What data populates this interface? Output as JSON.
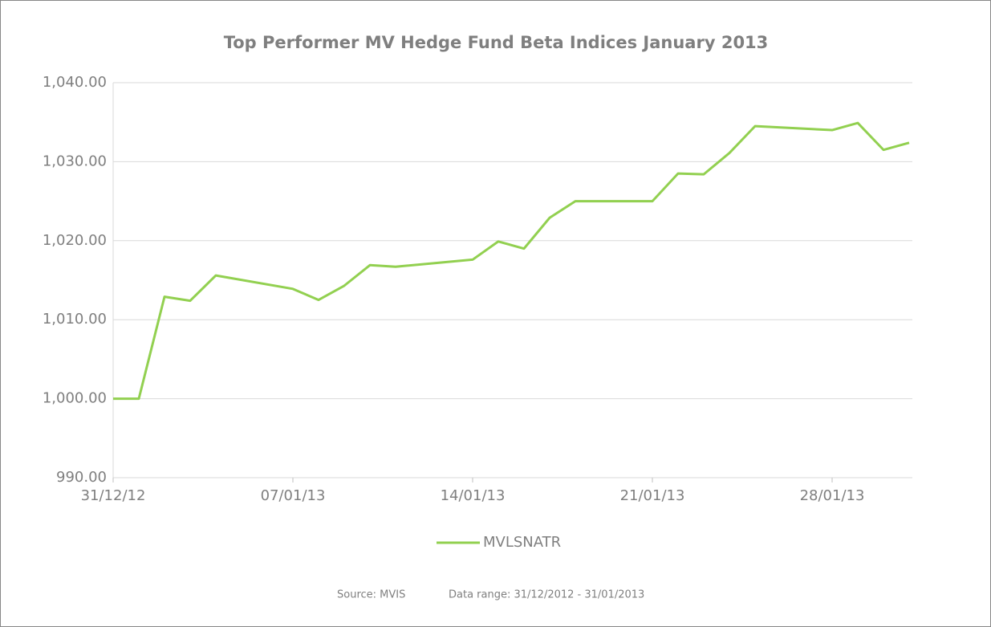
{
  "chart_data": {
    "type": "line",
    "title": "Top Performer MV Hedge Fund Beta Indices January 2013",
    "x": [
      "31/12/12",
      "01/01/13",
      "02/01/13",
      "03/01/13",
      "04/01/13",
      "07/01/13",
      "08/01/13",
      "09/01/13",
      "10/01/13",
      "11/01/13",
      "14/01/13",
      "15/01/13",
      "16/01/13",
      "17/01/13",
      "18/01/13",
      "21/01/13",
      "22/01/13",
      "23/01/13",
      "24/01/13",
      "25/01/13",
      "28/01/13",
      "29/01/13",
      "30/01/13",
      "31/01/13"
    ],
    "series": [
      {
        "name": "MVLSNATR",
        "color": "#92d050",
        "values": [
          1000.0,
          1000.0,
          1012.9,
          1012.4,
          1015.6,
          1013.9,
          1012.5,
          1014.3,
          1016.9,
          1016.7,
          1017.6,
          1019.9,
          1019.0,
          1022.9,
          1025.0,
          1025.0,
          1028.5,
          1028.4,
          1031.1,
          1034.5,
          1034.0,
          1034.9,
          1031.5,
          1032.4
        ]
      }
    ],
    "xlim": [
      "31/12/12",
      "31/01/13"
    ],
    "xticks": [
      "31/12/12",
      "07/01/13",
      "14/01/13",
      "21/01/13",
      "28/01/13"
    ],
    "ylim": [
      990,
      1040
    ],
    "yticks": [
      {
        "value": 990,
        "label": "990.00"
      },
      {
        "value": 1000,
        "label": "1,000.00"
      },
      {
        "value": 1010,
        "label": "1,010.00"
      },
      {
        "value": 1020,
        "label": "1,020.00"
      },
      {
        "value": 1030,
        "label": "1,030.00"
      },
      {
        "value": 1040,
        "label": "1,040.00"
      }
    ],
    "grid": true,
    "legend": "bottom",
    "annotations": [
      "Source: MVIS",
      "Data range: 31/12/2012 - 31/01/2013"
    ]
  }
}
